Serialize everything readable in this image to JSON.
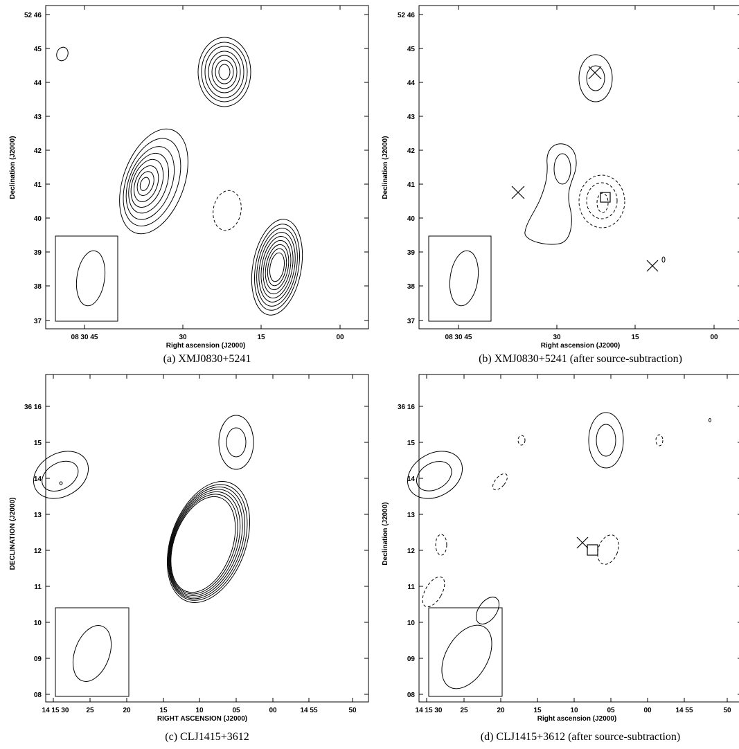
{
  "figure": {
    "panels": [
      {
        "id": "a",
        "caption": "(a) XMJ0830+5241",
        "xlabel": "Right ascension (J2000)",
        "ylabel": "Declination (J2000)",
        "xticks": [
          "08 30 45",
          "30",
          "15",
          "00"
        ],
        "yticks": [
          "52 46",
          "45",
          "44",
          "43",
          "42",
          "41",
          "40",
          "39",
          "38",
          "37"
        ]
      },
      {
        "id": "b",
        "caption": "(b) XMJ0830+5241 (after source-subtraction)",
        "xlabel": "Right ascension (J2000)",
        "ylabel": "Declination (J2000)",
        "xticks": [
          "08 30 45",
          "30",
          "15",
          "00"
        ],
        "yticks": [
          "52 46",
          "45",
          "44",
          "43",
          "42",
          "41",
          "40",
          "39",
          "38",
          "37"
        ]
      },
      {
        "id": "c",
        "caption": "(c) CLJ1415+3612",
        "xlabel": "RIGHT ASCENSION (J2000)",
        "ylabel": "DECLINATION (J2000)",
        "xticks": [
          "14 15 30",
          "25",
          "20",
          "15",
          "10",
          "05",
          "00",
          "14 55",
          "50"
        ],
        "yticks": [
          "36 16",
          "15",
          "14",
          "13",
          "12",
          "11",
          "10",
          "09",
          "08"
        ]
      },
      {
        "id": "d",
        "caption": "(d) CLJ1415+3612 (after source-subtraction)",
        "xlabel": "Right ascension (J2000)",
        "ylabel": "Declination (J2000)",
        "xticks": [
          "14 15 30",
          "25",
          "20",
          "15",
          "10",
          "05",
          "00",
          "14 55",
          "50"
        ],
        "yticks": [
          "36 16",
          "15",
          "14",
          "13",
          "12",
          "11",
          "10",
          "09",
          "08"
        ]
      }
    ]
  }
}
